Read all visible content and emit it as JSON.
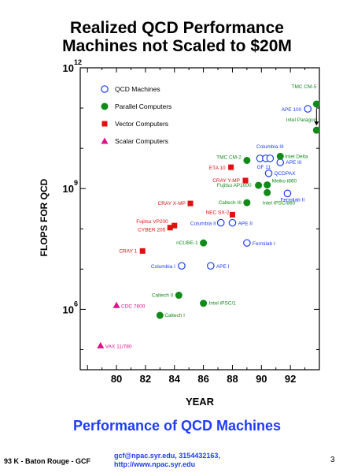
{
  "header": {
    "title_line1": "Realized QCD Performance",
    "title_line2": "Machines not Scaled to $20M"
  },
  "subtitle": "Performance of QCD Machines",
  "footer": {
    "left": "93 K - Baton Rouge - GCF",
    "contact_line1": "gcf@npac.syr.edu, 3154432163,",
    "contact_line2": "http://www.npac.syr.edu",
    "page": "3"
  },
  "colors": {
    "qcd": "#1f3cff",
    "parallel": "#118a1a",
    "vector": "#e01010",
    "scalar": "#e0108a",
    "subtitle": "#1f3cff"
  },
  "chart_data": {
    "type": "scatter",
    "xlabel": "YEAR",
    "ylabel": "FLOPS FOR QCD",
    "xlim": [
      77.5,
      94
    ],
    "ylog_exponent_range": [
      4.5,
      12
    ],
    "x_ticks": [
      "80",
      "82",
      "84",
      "86",
      "88",
      "90",
      "92"
    ],
    "y_ticks": [
      {
        "base": "10",
        "exp": "6",
        "log": 6
      },
      {
        "base": "10",
        "exp": "9",
        "log": 9
      },
      {
        "base": "10",
        "exp": "12",
        "log": 12
      }
    ],
    "legend_position": "top-left",
    "series": [
      {
        "name": "QCD Machines",
        "marker": "open-circle",
        "color": "#1f3cff",
        "points": [
          {
            "label": "Columbia I",
            "x": 84.5,
            "log_flops": 7.08
          },
          {
            "label": "APE I",
            "x": 86.5,
            "log_flops": 7.08
          },
          {
            "label": "Columbia II",
            "x": 87.2,
            "log_flops": 8.15
          },
          {
            "label": "APE II",
            "x": 88.0,
            "log_flops": 8.15
          },
          {
            "label": "Fermilab I",
            "x": 89.0,
            "log_flops": 7.65
          },
          {
            "label": "GF 11",
            "x": 89.9,
            "log_flops": 9.75
          },
          {
            "label": "",
            "x": 90.3,
            "log_flops": 9.75
          },
          {
            "label": "Columbia III",
            "x": 90.6,
            "log_flops": 9.75
          },
          {
            "label": "QCDPAX",
            "x": 90.5,
            "log_flops": 9.38
          },
          {
            "label": "APE III",
            "x": 91.3,
            "log_flops": 9.65
          },
          {
            "label": "Fermilab II",
            "x": 91.8,
            "log_flops": 8.88
          },
          {
            "label": "APE 100",
            "x": 93.2,
            "log_flops": 10.98
          }
        ]
      },
      {
        "name": "Parallel Computers",
        "marker": "filled-circle",
        "color": "#118a1a",
        "points": [
          {
            "label": "Caltech I",
            "x": 83.0,
            "log_flops": 5.85
          },
          {
            "label": "Caltech II",
            "x": 84.3,
            "log_flops": 6.35
          },
          {
            "label": "Intel iPSC/1",
            "x": 86.0,
            "log_flops": 6.15
          },
          {
            "label": "nCUBE-1",
            "x": 86.0,
            "log_flops": 7.65
          },
          {
            "label": "Caltech III",
            "x": 89.0,
            "log_flops": 8.65
          },
          {
            "label": "Fujitsu AP1000",
            "x": 89.8,
            "log_flops": 9.08
          },
          {
            "label": "Meiko i860",
            "x": 90.4,
            "log_flops": 9.09
          },
          {
            "label": "Intel iPSC/860",
            "x": 90.4,
            "log_flops": 8.9
          },
          {
            "label": "TMC CM-2",
            "x": 89.0,
            "log_flops": 9.7
          },
          {
            "label": "Intel Delta",
            "x": 91.3,
            "log_flops": 9.8
          },
          {
            "label": "TMC CM-5",
            "x": 93.8,
            "log_flops": 11.1
          },
          {
            "label": "Intel Paragon",
            "x": 93.8,
            "log_flops": 10.45
          }
        ]
      },
      {
        "name": "Vector Computers",
        "marker": "filled-square",
        "color": "#e01010",
        "points": [
          {
            "label": "CRAY 1",
            "x": 81.8,
            "log_flops": 7.45
          },
          {
            "label": "CYBER 205",
            "x": 83.7,
            "log_flops": 8.03
          },
          {
            "label": "Fujitsu VP200",
            "x": 84.0,
            "log_flops": 8.08
          },
          {
            "label": "CRAY X-MP",
            "x": 85.1,
            "log_flops": 8.63
          },
          {
            "label": "ETA 10",
            "x": 87.9,
            "log_flops": 9.53
          },
          {
            "label": "CRAY Y-MP",
            "x": 88.9,
            "log_flops": 9.2
          },
          {
            "label": "NEC SX-2",
            "x": 88.0,
            "log_flops": 8.35
          }
        ]
      },
      {
        "name": "Scalar Computers",
        "marker": "filled-triangle",
        "color": "#e0108a",
        "points": [
          {
            "label": "CDC 7600",
            "x": 80.0,
            "log_flops": 6.1
          },
          {
            "label": "VAX 11/780",
            "x": 78.9,
            "log_flops": 5.1
          }
        ]
      }
    ]
  }
}
